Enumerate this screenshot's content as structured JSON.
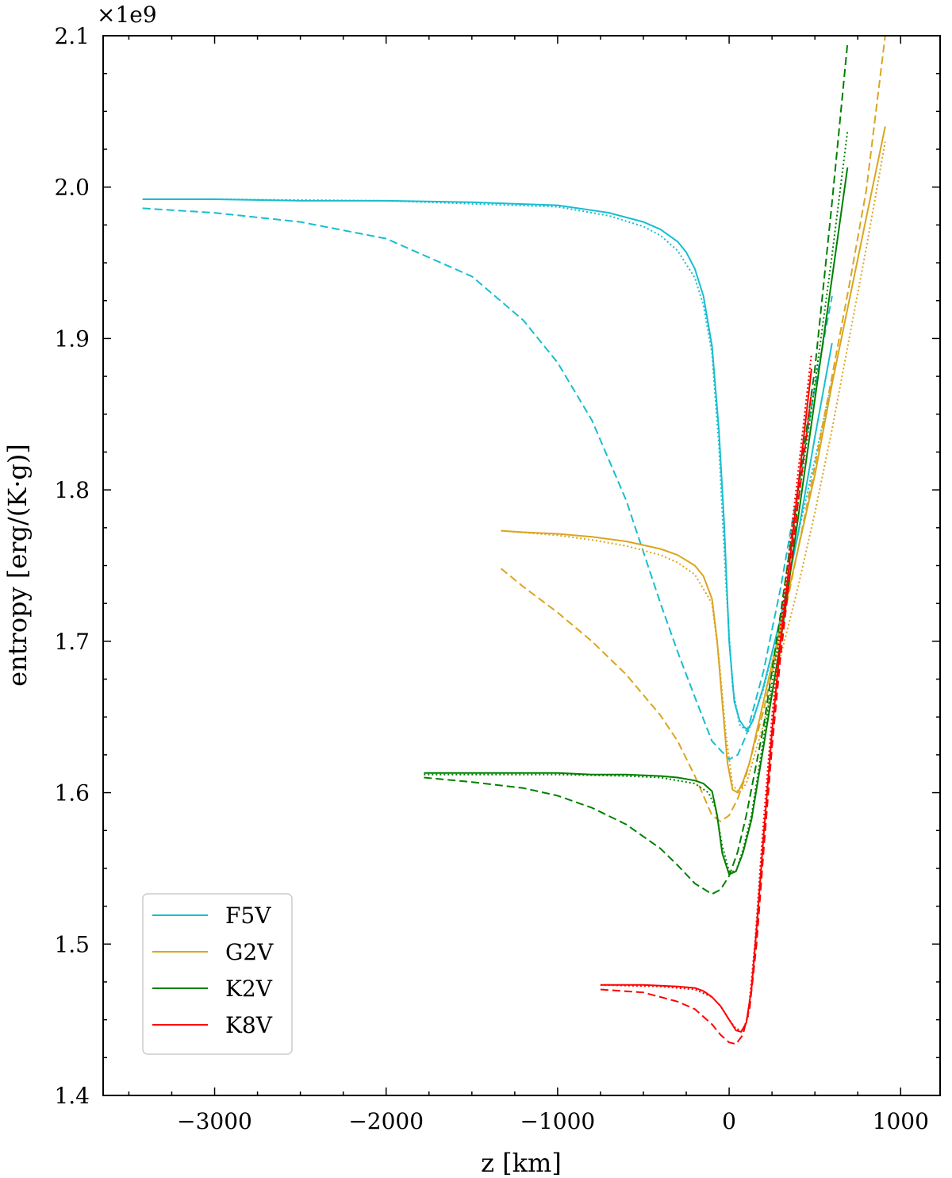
{
  "chart_data": {
    "type": "line",
    "title": "",
    "xlabel": "z [km]",
    "ylabel": "entropy [erg/(K·g)]",
    "y_multiplier": "×1e9",
    "xlim": [
      -3650,
      1230
    ],
    "ylim": [
      1.4,
      2.1
    ],
    "xticks": [
      -3000,
      -2000,
      -1000,
      0,
      1000
    ],
    "xtick_labels": [
      "−3000",
      "−2000",
      "−1000",
      "0",
      "1000"
    ],
    "yticks": [
      1.4,
      1.5,
      1.6,
      1.7,
      1.8,
      1.9,
      2.0,
      2.1
    ],
    "ytick_labels": [
      "1.4",
      "1.5",
      "1.6",
      "1.7",
      "1.8",
      "1.9",
      "2.0",
      "2.1"
    ],
    "legend_position": "lower-left",
    "colors": {
      "F5V": "#17becf",
      "G2V": "#daa520",
      "K2V": "#008000",
      "K8V": "#ff0000"
    },
    "series": [
      {
        "name": "F5V",
        "style": "solid",
        "legend": true,
        "x": [
          -3420,
          -3000,
          -2500,
          -2000,
          -1500,
          -1000,
          -700,
          -500,
          -400,
          -300,
          -250,
          -200,
          -150,
          -100,
          -60,
          -30,
          0,
          30,
          60,
          90,
          110,
          140,
          200,
          300,
          400,
          500,
          600
        ],
        "y": [
          1.992,
          1.992,
          1.991,
          1.991,
          1.99,
          1.988,
          1.983,
          1.977,
          1.972,
          1.964,
          1.957,
          1.946,
          1.928,
          1.895,
          1.84,
          1.78,
          1.7,
          1.66,
          1.648,
          1.643,
          1.642,
          1.648,
          1.67,
          1.715,
          1.77,
          1.835,
          1.897
        ]
      },
      {
        "name": "F5V",
        "style": "dotted",
        "legend": false,
        "x": [
          -3420,
          -3000,
          -2000,
          -1000,
          -700,
          -500,
          -400,
          -300,
          -200,
          -150,
          -100,
          -60,
          -20,
          20,
          60,
          110,
          200,
          300,
          400,
          500,
          600
        ],
        "y": [
          1.992,
          1.992,
          1.991,
          1.987,
          1.981,
          1.974,
          1.968,
          1.958,
          1.94,
          1.922,
          1.89,
          1.83,
          1.74,
          1.67,
          1.645,
          1.64,
          1.668,
          1.715,
          1.77,
          1.82,
          1.872
        ]
      },
      {
        "name": "F5V",
        "style": "dashed",
        "legend": false,
        "x": [
          -3420,
          -3000,
          -2500,
          -2000,
          -1500,
          -1200,
          -1000,
          -800,
          -600,
          -400,
          -300,
          -200,
          -100,
          0,
          50,
          100,
          200,
          300,
          400,
          500,
          600
        ],
        "y": [
          1.986,
          1.983,
          1.977,
          1.966,
          1.941,
          1.912,
          1.884,
          1.846,
          1.793,
          1.725,
          1.693,
          1.663,
          1.634,
          1.622,
          1.625,
          1.638,
          1.68,
          1.735,
          1.8,
          1.868,
          1.928
        ]
      },
      {
        "name": "G2V",
        "style": "solid",
        "legend": true,
        "x": [
          -1330,
          -1200,
          -1000,
          -800,
          -600,
          -400,
          -300,
          -200,
          -150,
          -100,
          -70,
          -40,
          -10,
          20,
          50,
          80,
          120,
          200,
          300,
          400,
          500,
          600,
          700,
          800,
          910
        ],
        "y": [
          1.773,
          1.772,
          1.771,
          1.769,
          1.766,
          1.761,
          1.757,
          1.75,
          1.743,
          1.728,
          1.7,
          1.66,
          1.62,
          1.602,
          1.6,
          1.607,
          1.62,
          1.66,
          1.71,
          1.76,
          1.81,
          1.87,
          1.925,
          1.98,
          2.04
        ]
      },
      {
        "name": "G2V",
        "style": "dotted",
        "legend": false,
        "x": [
          -1330,
          -1000,
          -800,
          -600,
          -400,
          -300,
          -200,
          -100,
          -60,
          -20,
          20,
          60,
          100,
          200,
          300,
          400,
          500,
          600,
          700,
          800,
          910
        ],
        "y": [
          1.773,
          1.77,
          1.767,
          1.763,
          1.757,
          1.752,
          1.744,
          1.725,
          1.69,
          1.64,
          1.605,
          1.6,
          1.606,
          1.645,
          1.69,
          1.735,
          1.785,
          1.84,
          1.9,
          1.96,
          2.03
        ]
      },
      {
        "name": "G2V",
        "style": "dashed",
        "legend": false,
        "x": [
          -1330,
          -1200,
          -1000,
          -800,
          -600,
          -400,
          -300,
          -200,
          -100,
          -50,
          0,
          50,
          100,
          200,
          300,
          400,
          500,
          600,
          700,
          800,
          910
        ],
        "y": [
          1.748,
          1.736,
          1.719,
          1.7,
          1.678,
          1.651,
          1.634,
          1.611,
          1.585,
          1.581,
          1.585,
          1.596,
          1.612,
          1.654,
          1.705,
          1.76,
          1.816,
          1.875,
          1.935,
          1.998,
          2.1
        ]
      },
      {
        "name": "K2V",
        "style": "solid",
        "legend": true,
        "x": [
          -1780,
          -1500,
          -1200,
          -1000,
          -800,
          -600,
          -400,
          -300,
          -200,
          -150,
          -100,
          -70,
          -40,
          0,
          40,
          80,
          130,
          200,
          300,
          400,
          500,
          600,
          690
        ],
        "y": [
          1.613,
          1.613,
          1.613,
          1.613,
          1.612,
          1.612,
          1.611,
          1.61,
          1.608,
          1.606,
          1.601,
          1.585,
          1.56,
          1.546,
          1.548,
          1.56,
          1.582,
          1.63,
          1.7,
          1.78,
          1.86,
          1.94,
          2.013
        ]
      },
      {
        "name": "K2V",
        "style": "dotted",
        "legend": false,
        "x": [
          -1780,
          -1000,
          -600,
          -400,
          -200,
          -120,
          -80,
          -40,
          0,
          40,
          80,
          130,
          200,
          300,
          400,
          500,
          600,
          690
        ],
        "y": [
          1.612,
          1.612,
          1.611,
          1.61,
          1.606,
          1.6,
          1.59,
          1.565,
          1.548,
          1.548,
          1.562,
          1.585,
          1.635,
          1.71,
          1.79,
          1.87,
          1.955,
          2.037
        ]
      },
      {
        "name": "K2V",
        "style": "dashed",
        "legend": false,
        "x": [
          -1780,
          -1500,
          -1200,
          -1000,
          -800,
          -600,
          -400,
          -300,
          -200,
          -100,
          -50,
          0,
          50,
          100,
          200,
          300,
          400,
          500,
          600,
          690
        ],
        "y": [
          1.61,
          1.607,
          1.603,
          1.598,
          1.59,
          1.579,
          1.563,
          1.552,
          1.54,
          1.533,
          1.536,
          1.545,
          1.561,
          1.585,
          1.643,
          1.718,
          1.798,
          1.88,
          1.99,
          2.095
        ]
      },
      {
        "name": "K8V",
        "style": "solid",
        "legend": true,
        "x": [
          -750,
          -500,
          -300,
          -200,
          -150,
          -100,
          -50,
          0,
          40,
          70,
          100,
          130,
          160,
          200,
          250,
          300,
          350,
          400,
          450,
          480
        ],
        "y": [
          1.473,
          1.473,
          1.472,
          1.471,
          1.469,
          1.465,
          1.459,
          1.45,
          1.443,
          1.442,
          1.448,
          1.47,
          1.51,
          1.57,
          1.64,
          1.7,
          1.75,
          1.8,
          1.85,
          1.88
        ]
      },
      {
        "name": "K8V",
        "style": "dotted",
        "legend": false,
        "x": [
          -750,
          -400,
          -200,
          -100,
          -50,
          0,
          40,
          80,
          110,
          150,
          200,
          250,
          300,
          350,
          400,
          450,
          480
        ],
        "y": [
          1.473,
          1.472,
          1.47,
          1.465,
          1.459,
          1.45,
          1.444,
          1.443,
          1.452,
          1.5,
          1.58,
          1.65,
          1.71,
          1.76,
          1.81,
          1.86,
          1.89
        ]
      },
      {
        "name": "K8V",
        "style": "dashed",
        "legend": false,
        "x": [
          -750,
          -500,
          -300,
          -200,
          -100,
          -50,
          0,
          40,
          80,
          120,
          160,
          200,
          250,
          300,
          350,
          400,
          450,
          480
        ],
        "y": [
          1.47,
          1.468,
          1.462,
          1.457,
          1.447,
          1.44,
          1.435,
          1.434,
          1.44,
          1.458,
          1.5,
          1.56,
          1.63,
          1.69,
          1.74,
          1.79,
          1.835,
          1.865
        ]
      }
    ]
  }
}
